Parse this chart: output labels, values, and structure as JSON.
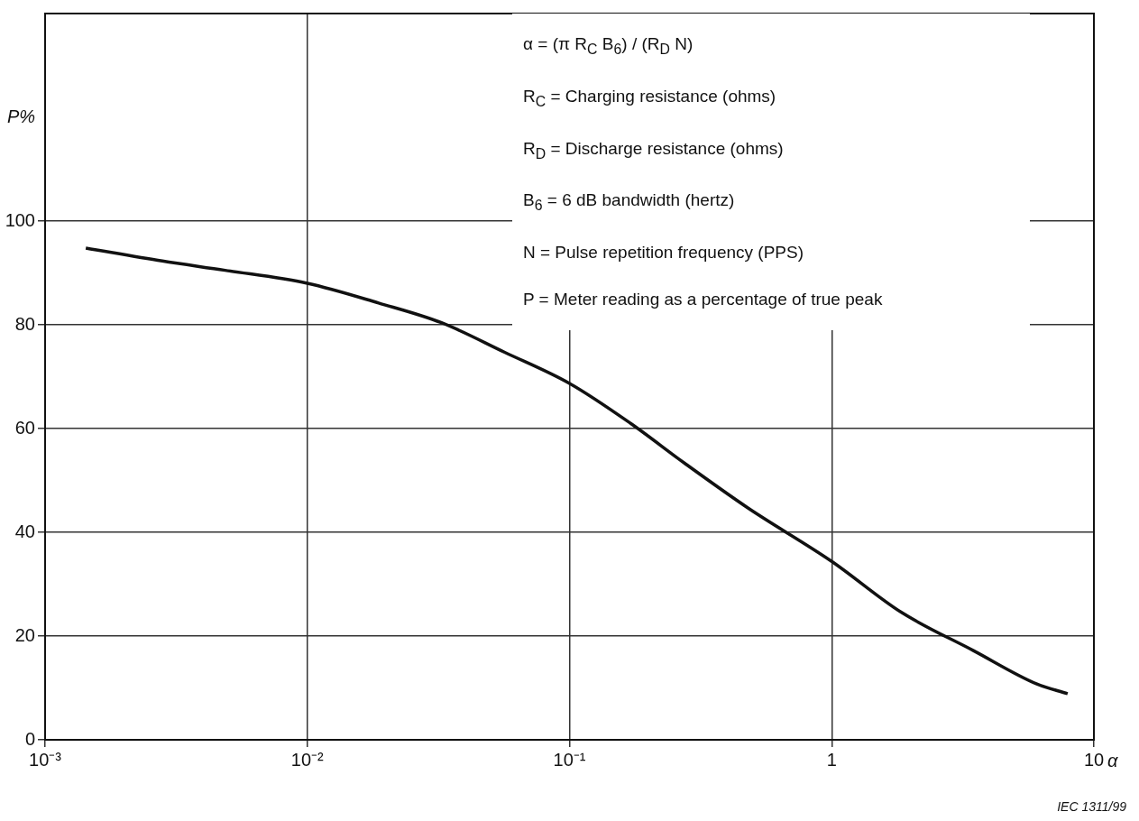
{
  "chart_data": {
    "type": "line",
    "xlabel": "α",
    "ylabel": "P%",
    "x": [
      0.00143,
      0.0028,
      0.00486,
      0.01,
      0.0187,
      0.0325,
      0.0566,
      0.1,
      0.171,
      0.275,
      0.479,
      1,
      1.84,
      3.47,
      6.03,
      7.94
    ],
    "series": [
      {
        "color": "#111111",
        "values": [
          94.8,
          92.3,
          90.5,
          88.0,
          84.2,
          80.4,
          74.7,
          68.7,
          61.0,
          53.3,
          44.7,
          34.4,
          24.6,
          17.2,
          10.8,
          8.9
        ]
      }
    ],
    "log": "x",
    "xlim": [
      0.001,
      10
    ],
    "xticks": [
      {
        "value": 0.001,
        "label": "10⁻³"
      },
      {
        "value": 0.01,
        "label": "10⁻²"
      },
      {
        "value": 0.1,
        "label": "10⁻¹"
      },
      1,
      10
    ],
    "ylim": [
      0,
      140
    ],
    "yticks": [
      0,
      20,
      40,
      60,
      80,
      100
    ],
    "grid": true,
    "legend": false,
    "marker": "none",
    "line_style": "solid",
    "annotations": [
      "α = (π R$_{C}$ B$_{6}$) / (R$_{D}$ N)",
      "R$_{C}$ = Charging resistance (ohms)",
      "R$_{D}$ = Discharge resistance (ohms)",
      "B$_{6}$ = 6 dB bandwidth (hertz)",
      "N = Pulse repetition frequency (PPS)",
      "P = Meter reading as a percentage of true peak",
      "IEC 1311/99"
    ]
  }
}
